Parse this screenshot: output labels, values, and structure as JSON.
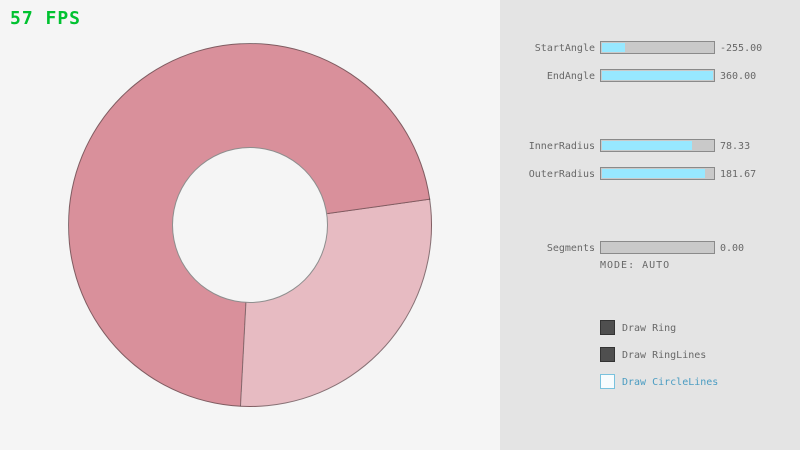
{
  "fps": {
    "label": "57 FPS"
  },
  "ring": {
    "start_angle": -255.0,
    "end_angle": 360.0,
    "inner_radius": 78.33,
    "outer_radius": 181.67,
    "segments": 0.0,
    "mode": "AUTO",
    "colors": {
      "single_pass": "#e7bbc2",
      "overlap": "#d9909b",
      "outline": "rgba(40,40,40,0.5)",
      "background": "#f5f5f5"
    }
  },
  "panel": {
    "background": "#e4e4e4",
    "accent_fill": "#97e8ff",
    "sliders": [
      {
        "label": "StartAngle",
        "value": "-255.00",
        "fill_pct": 21
      },
      {
        "label": "EndAngle",
        "value": "360.00",
        "fill_pct": 100
      },
      {
        "label": "InnerRadius",
        "value": "78.33",
        "fill_pct": 81
      },
      {
        "label": "OuterRadius",
        "value": "181.67",
        "fill_pct": 93
      },
      {
        "label": "Segments",
        "value": "0.00",
        "fill_pct": 0
      }
    ],
    "mode_label": "MODE: AUTO",
    "checkboxes": [
      {
        "label": "Draw Ring",
        "checked": true
      },
      {
        "label": "Draw RingLines",
        "checked": true
      },
      {
        "label": "Draw CircleLines",
        "checked": false
      }
    ]
  }
}
